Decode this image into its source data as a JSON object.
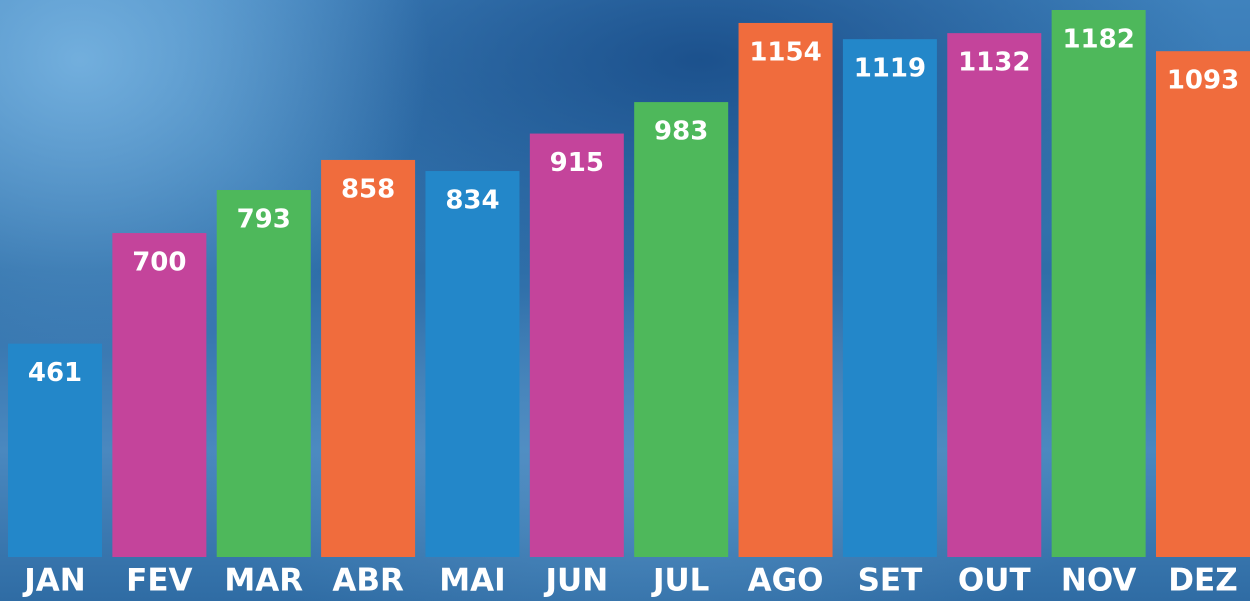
{
  "chart_data": {
    "type": "bar",
    "categories": [
      "JAN",
      "FEV",
      "MAR",
      "ABR",
      "MAI",
      "JUN",
      "JUL",
      "AGO",
      "SET",
      "OUT",
      "NOV",
      "DEZ"
    ],
    "values": [
      461,
      700,
      793,
      858,
      834,
      915,
      983,
      1154,
      1119,
      1132,
      1182,
      1093
    ],
    "colors": [
      "#2387c9",
      "#c4449b",
      "#4eb85b",
      "#f06c3d",
      "#2387c9",
      "#c4449b",
      "#4eb85b",
      "#f06c3d",
      "#2387c9",
      "#c4449b",
      "#4eb85b",
      "#f06c3d"
    ]
  }
}
